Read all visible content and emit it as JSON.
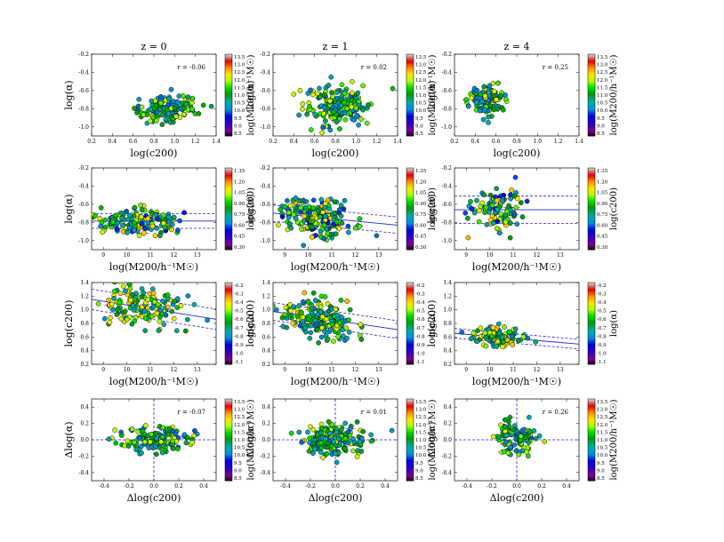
{
  "column_titles": [
    "z = 0",
    "z = 1",
    "z = 4"
  ],
  "row_labels": {
    "r1": {
      "x": "log(c200)",
      "y": "log(α)",
      "cb": "log(M200/h⁻¹M☉)"
    },
    "r2": {
      "x": "log(M200/h⁻¹M☉)",
      "y": "log(α)",
      "cb": "log(c200)"
    },
    "r3": {
      "x": "log(M200/h⁻¹M☉)",
      "y": "log(c200)",
      "cb": "log(α)"
    },
    "r4": {
      "x": "Δlog(c200)",
      "y": "Δlog(α)",
      "cb": "log(M200/h⁻¹M☉)"
    }
  },
  "colorbar_ticks": {
    "mass": [
      "13.5",
      "13.0",
      "12.5",
      "12.0",
      "11.5",
      "11.0",
      "10.5",
      "10.0",
      "9.5",
      "9.0",
      "8.5"
    ],
    "conc": [
      "1.35",
      "1.20",
      "1.05",
      "0.90",
      "0.75",
      "0.60",
      "0.45",
      "0.30"
    ],
    "alpha": [
      "-0.2",
      "-0.3",
      "-0.4",
      "-0.5",
      "-0.6",
      "-0.7",
      "-0.8",
      "-0.9",
      "-1.0",
      "-1.1"
    ]
  },
  "chart_data": [
    {
      "type": "scatter",
      "row": 0,
      "col": 0,
      "title": "z = 0",
      "xlabel": "log(c200)",
      "ylabel": "log(α)",
      "xlim": [
        0.2,
        1.4
      ],
      "ylim": [
        -1.1,
        -0.2
      ],
      "xticks": [
        "0.2",
        "0.4",
        "0.6",
        "0.8",
        "1.0",
        "1.2",
        "1.4"
      ],
      "yticks": [
        "-0.2",
        "-0.4",
        "-0.6",
        "-0.8",
        "-1.0"
      ],
      "annotation": "r = -0.06",
      "color_var": "log(M200/h⁻¹M☉)",
      "cmap_range": [
        8.5,
        13.5
      ],
      "cloud": {
        "cx": 0.93,
        "cy": -0.79,
        "sx": 0.16,
        "sy": 0.07,
        "n": 150
      }
    },
    {
      "type": "scatter",
      "row": 0,
      "col": 1,
      "title": "z = 1",
      "xlabel": "log(c200)",
      "ylabel": "log(α)",
      "xlim": [
        0.2,
        1.4
      ],
      "ylim": [
        -1.1,
        -0.2
      ],
      "xticks": [
        "0.2",
        "0.4",
        "0.6",
        "0.8",
        "1.0",
        "1.2",
        "1.4"
      ],
      "yticks": [
        "-0.2",
        "-0.4",
        "-0.6",
        "-0.8",
        "-1.0"
      ],
      "annotation": "r = 0.02",
      "color_var": "log(M200/h⁻¹M☉)",
      "cmap_range": [
        8.5,
        13.5
      ],
      "cloud": {
        "cx": 0.82,
        "cy": -0.78,
        "sx": 0.14,
        "sy": 0.1,
        "n": 200
      }
    },
    {
      "type": "scatter",
      "row": 0,
      "col": 2,
      "title": "z = 4",
      "xlabel": "log(c200)",
      "ylabel": "log(α)",
      "xlim": [
        0.2,
        1.4
      ],
      "ylim": [
        -1.1,
        -0.2
      ],
      "xticks": [
        "0.2",
        "0.4",
        "0.6",
        "0.8",
        "1.0",
        "1.2",
        "1.4"
      ],
      "yticks": [
        "-0.2",
        "-0.4",
        "-0.6",
        "-0.8",
        "-1.0"
      ],
      "annotation": "r = 0.25",
      "color_var": "log(M200/h⁻¹M☉)",
      "cmap_range": [
        8.5,
        13.5
      ],
      "cloud": {
        "cx": 0.52,
        "cy": -0.71,
        "sx": 0.09,
        "sy": 0.1,
        "n": 110
      }
    },
    {
      "type": "scatter",
      "row": 1,
      "col": 0,
      "xlabel": "log(M200/h⁻¹M☉)",
      "ylabel": "log(α)",
      "xlim": [
        8.5,
        13.8
      ],
      "ylim": [
        -1.1,
        -0.2
      ],
      "xticks": [
        "9",
        "10",
        "11",
        "12",
        "13"
      ],
      "yticks": [
        "-0.2",
        "-0.4",
        "-0.6",
        "-0.8",
        "-1.0"
      ],
      "color_var": "log(c200)",
      "cmap_range": [
        0.25,
        1.4
      ],
      "fit": {
        "a": -0.785,
        "b": 0.0
      },
      "band": 0.08,
      "cloud": {
        "cx": 10.6,
        "cy": -0.77,
        "sx": 0.9,
        "sy": 0.08,
        "n": 150
      }
    },
    {
      "type": "scatter",
      "row": 1,
      "col": 1,
      "xlabel": "log(M200/h⁻¹M☉)",
      "ylabel": "log(α)",
      "xlim": [
        8.5,
        13.8
      ],
      "ylim": [
        -1.1,
        -0.2
      ],
      "xticks": [
        "9",
        "10",
        "11",
        "12",
        "13"
      ],
      "yticks": [
        "-0.2",
        "-0.4",
        "-0.6",
        "-0.8",
        "-1.0"
      ],
      "color_var": "log(c200)",
      "cmap_range": [
        0.25,
        1.4
      ],
      "fit": {
        "a": -0.735,
        "b": -0.025
      },
      "band": 0.09,
      "cloud": {
        "cx": 10.4,
        "cy": -0.78,
        "sx": 0.75,
        "sy": 0.1,
        "n": 200
      }
    },
    {
      "type": "scatter",
      "row": 1,
      "col": 2,
      "xlabel": "log(M200/h⁻¹M☉)",
      "ylabel": "log(α)",
      "xlim": [
        8.5,
        13.8
      ],
      "ylim": [
        -1.1,
        -0.2
      ],
      "xticks": [
        "9",
        "10",
        "11",
        "12",
        "13"
      ],
      "yticks": [
        "-0.2",
        "-0.4",
        "-0.6",
        "-0.8",
        "-1.0"
      ],
      "color_var": "log(c200)",
      "cmap_range": [
        0.25,
        1.4
      ],
      "fit": {
        "a": -0.66,
        "b": 0.0
      },
      "band": 0.15,
      "cloud": {
        "cx": 10.3,
        "cy": -0.7,
        "sx": 0.5,
        "sy": 0.12,
        "n": 110
      }
    },
    {
      "type": "scatter",
      "row": 2,
      "col": 0,
      "xlabel": "log(M200/h⁻¹M☉)",
      "ylabel": "log(c200)",
      "xlim": [
        8.5,
        13.8
      ],
      "ylim": [
        0.2,
        1.4
      ],
      "xticks": [
        "9",
        "10",
        "11",
        "12",
        "13"
      ],
      "yticks": [
        "0.2",
        "0.4",
        "0.6",
        "0.8",
        "1.0",
        "1.2",
        "1.4"
      ],
      "color_var": "log(α)",
      "cmap_range": [
        -1.1,
        -0.2
      ],
      "fit": {
        "a": 1.07,
        "b": -0.055
      },
      "band": 0.15,
      "cloud": {
        "cx": 10.6,
        "cy": 0.95,
        "sx": 0.9,
        "sy": 0.15,
        "n": 150
      }
    },
    {
      "type": "scatter",
      "row": 2,
      "col": 1,
      "xlabel": "log(M200/h⁻¹M☉)",
      "ylabel": "log(c200)",
      "xlim": [
        8.5,
        13.8
      ],
      "ylim": [
        0.2,
        1.4
      ],
      "xticks": [
        "9",
        "10",
        "11",
        "12",
        "13"
      ],
      "yticks": [
        "0.2",
        "0.4",
        "0.6",
        "0.8",
        "1.0",
        "1.2",
        "1.4"
      ],
      "color_var": "log(α)",
      "cmap_range": [
        -1.1,
        -0.2
      ],
      "fit": {
        "a": 0.9,
        "b": -0.05
      },
      "band": 0.13,
      "cloud": {
        "cx": 10.4,
        "cy": 0.82,
        "sx": 0.75,
        "sy": 0.13,
        "n": 200
      }
    },
    {
      "type": "scatter",
      "row": 2,
      "col": 2,
      "xlabel": "log(M200/h⁻¹M☉)",
      "ylabel": "log(c200)",
      "xlim": [
        8.5,
        13.8
      ],
      "ylim": [
        0.2,
        1.4
      ],
      "xticks": [
        "9",
        "10",
        "11",
        "12",
        "13"
      ],
      "yticks": [
        "0.2",
        "0.4",
        "0.6",
        "0.8",
        "1.0",
        "1.2",
        "1.4"
      ],
      "color_var": "log(α)",
      "cmap_range": [
        -1.1,
        -0.2
      ],
      "fit": {
        "a": 0.61,
        "b": -0.03
      },
      "band": 0.07,
      "cloud": {
        "cx": 10.3,
        "cy": 0.55,
        "sx": 0.5,
        "sy": 0.08,
        "n": 110
      }
    },
    {
      "type": "scatter",
      "row": 3,
      "col": 0,
      "xlabel": "Δlog(c200)",
      "ylabel": "Δlog(α)",
      "xlim": [
        -0.5,
        0.5
      ],
      "ylim": [
        -0.5,
        0.5
      ],
      "xticks": [
        "-0.4",
        "-0.2",
        "0.0",
        "0.2",
        "0.4"
      ],
      "yticks": [
        "0.4",
        "0.2",
        "0.0",
        "-0.2",
        "-0.4"
      ],
      "annotation": "r = -0.07",
      "color_var": "log(M200/h⁻¹M☉)",
      "cmap_range": [
        8.5,
        13.5
      ],
      "cloud": {
        "cx": 0.0,
        "cy": 0.0,
        "sx": 0.14,
        "sy": 0.08,
        "n": 150
      }
    },
    {
      "type": "scatter",
      "row": 3,
      "col": 1,
      "xlabel": "Δlog(c200)",
      "ylabel": "Δlog(α)",
      "xlim": [
        -0.5,
        0.5
      ],
      "ylim": [
        -0.5,
        0.5
      ],
      "xticks": [
        "-0.4",
        "-0.2",
        "0.0",
        "0.2",
        "0.4"
      ],
      "yticks": [
        "0.4",
        "0.2",
        "0.0",
        "-0.2",
        "-0.4"
      ],
      "annotation": "r = 0.01",
      "color_var": "log(M200/h⁻¹M☉)",
      "cmap_range": [
        8.5,
        13.5
      ],
      "cloud": {
        "cx": 0.0,
        "cy": 0.0,
        "sx": 0.12,
        "sy": 0.09,
        "n": 200
      }
    },
    {
      "type": "scatter",
      "row": 3,
      "col": 2,
      "xlabel": "Δlog(c200)",
      "ylabel": "Δlog(α)",
      "xlim": [
        -0.5,
        0.5
      ],
      "ylim": [
        -0.5,
        0.5
      ],
      "xticks": [
        "-0.4",
        "-0.2",
        "0.0",
        "0.2",
        "0.4"
      ],
      "yticks": [
        "0.4",
        "0.2",
        "0.0",
        "-0.2",
        "-0.4"
      ],
      "annotation": "r = 0.26",
      "color_var": "log(M200/h⁻¹M☉)",
      "cmap_range": [
        8.5,
        13.5
      ],
      "cloud": {
        "cx": 0.0,
        "cy": 0.02,
        "sx": 0.08,
        "sy": 0.11,
        "n": 110
      }
    }
  ]
}
